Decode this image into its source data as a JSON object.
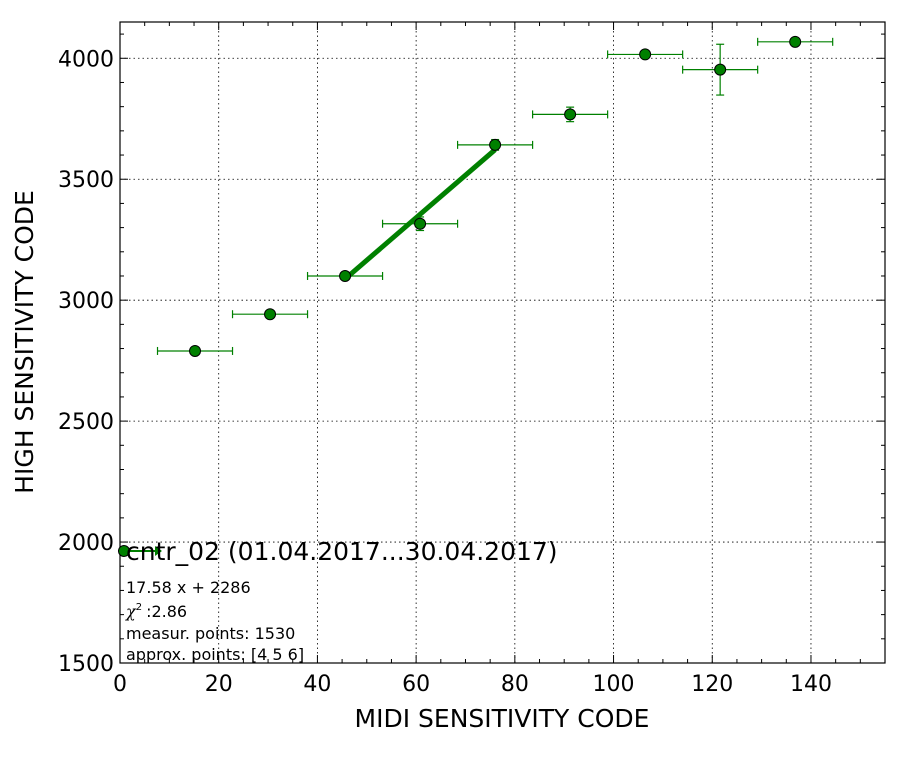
{
  "chart_data": {
    "type": "scatter",
    "xlabel": "MIDI SENSITIVITY CODE",
    "ylabel": "HIGH SENSITIVITY CODE",
    "xlim": [
      0,
      155
    ],
    "ylim": [
      1500,
      4150
    ],
    "xticks": [
      0,
      20,
      40,
      60,
      80,
      100,
      120,
      140
    ],
    "yticks": [
      1500,
      2000,
      2500,
      3000,
      3500,
      4000
    ],
    "grid": true,
    "color": "#008000",
    "series": [
      {
        "name": "cntr_02 (01.04.2017...30.04.2017)",
        "x": [
          15.2,
          30.4,
          45.6,
          60.8,
          76.0,
          91.2,
          106.4,
          121.6,
          136.8
        ],
        "y": [
          2790,
          2942,
          3100,
          3316,
          3642,
          3768,
          4016,
          3953,
          4068
        ],
        "xerr": [
          7.6,
          7.6,
          7.6,
          7.6,
          7.6,
          7.6,
          7.6,
          7.6,
          7.6
        ],
        "yerr": [
          0,
          0,
          0,
          28,
          22,
          30,
          0,
          105,
          0
        ]
      }
    ],
    "fit": {
      "slope": 17.58,
      "intercept": 2286,
      "x_range": [
        45.6,
        76.0
      ]
    },
    "legend_position": "lower-left",
    "annotations": [
      "17.58 x + 2286",
      ":2.86",
      "measur. points: 1530",
      "approx. points: [4 5 6]"
    ],
    "chi_symbol": "χ",
    "chi_superscript": "2"
  }
}
